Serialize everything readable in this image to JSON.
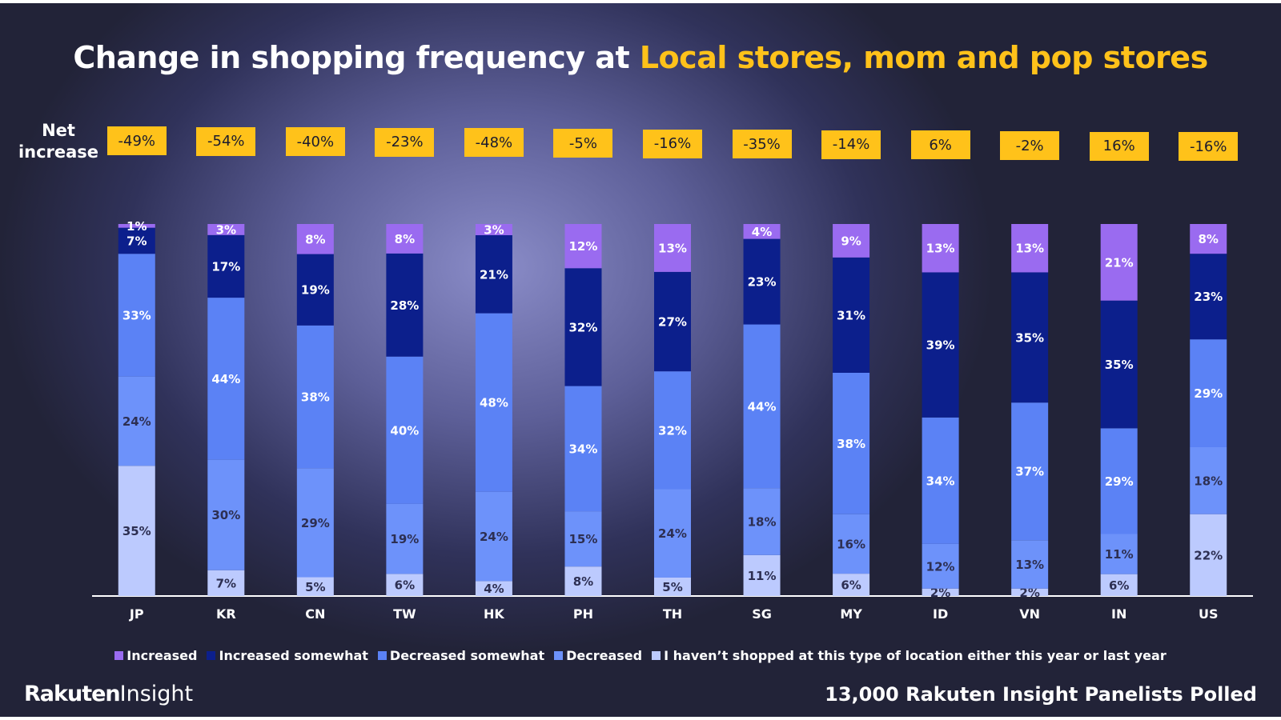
{
  "title": {
    "main": "Change in shopping frequency at ",
    "highlight": "Local stores, mom and pop stores"
  },
  "net_label": "Net increase",
  "colors": {
    "increased": "#9a6bf0",
    "increased_somewhat": "#0c1f8c",
    "decreased_somewhat": "#5b82f5",
    "decreased": "#6d92fa",
    "not_shopped": "#bccafe",
    "accent": "#ffc21a"
  },
  "chart_data": {
    "type": "bar",
    "stacked": true,
    "title": "Change in shopping frequency at Local stores, mom and pop stores",
    "categories": [
      "JP",
      "KR",
      "CN",
      "TW",
      "HK",
      "PH",
      "TH",
      "SG",
      "MY",
      "ID",
      "VN",
      "IN",
      "US"
    ],
    "net_increase": [
      "-49%",
      "-54%",
      "-40%",
      "-23%",
      "-48%",
      "-5%",
      "-16%",
      "-35%",
      "-14%",
      "6%",
      "-2%",
      "16%",
      "-16%"
    ],
    "series": [
      {
        "name": "I haven’t shopped at this type of location either this year or last year",
        "key": "not_shopped",
        "values": [
          35,
          7,
          5,
          6,
          4,
          8,
          5,
          11,
          6,
          2,
          2,
          6,
          22
        ]
      },
      {
        "name": "Decreased",
        "key": "decreased",
        "values": [
          24,
          30,
          29,
          19,
          24,
          15,
          24,
          18,
          16,
          12,
          13,
          11,
          18
        ]
      },
      {
        "name": "Decreased somewhat",
        "key": "decreased_somewhat",
        "values": [
          33,
          44,
          38,
          40,
          48,
          34,
          32,
          44,
          38,
          34,
          37,
          29,
          29
        ]
      },
      {
        "name": "Increased somewhat",
        "key": "increased_somewhat",
        "values": [
          7,
          17,
          19,
          28,
          21,
          32,
          27,
          23,
          31,
          39,
          35,
          35,
          23
        ]
      },
      {
        "name": "Increased",
        "key": "increased",
        "values": [
          1,
          3,
          8,
          8,
          3,
          12,
          13,
          4,
          9,
          13,
          13,
          21,
          8
        ]
      }
    ],
    "ylim": [
      0,
      100
    ],
    "legend": [
      "Increased",
      "Increased somewhat",
      "Decreased somewhat",
      "Decreased",
      "I haven’t shopped at this type of location either this year or last year"
    ]
  },
  "branding": {
    "logo_bold": "Rakuten",
    "logo_light": "Insight"
  },
  "footer": "13,000  Rakuten Insight Panelists Polled"
}
